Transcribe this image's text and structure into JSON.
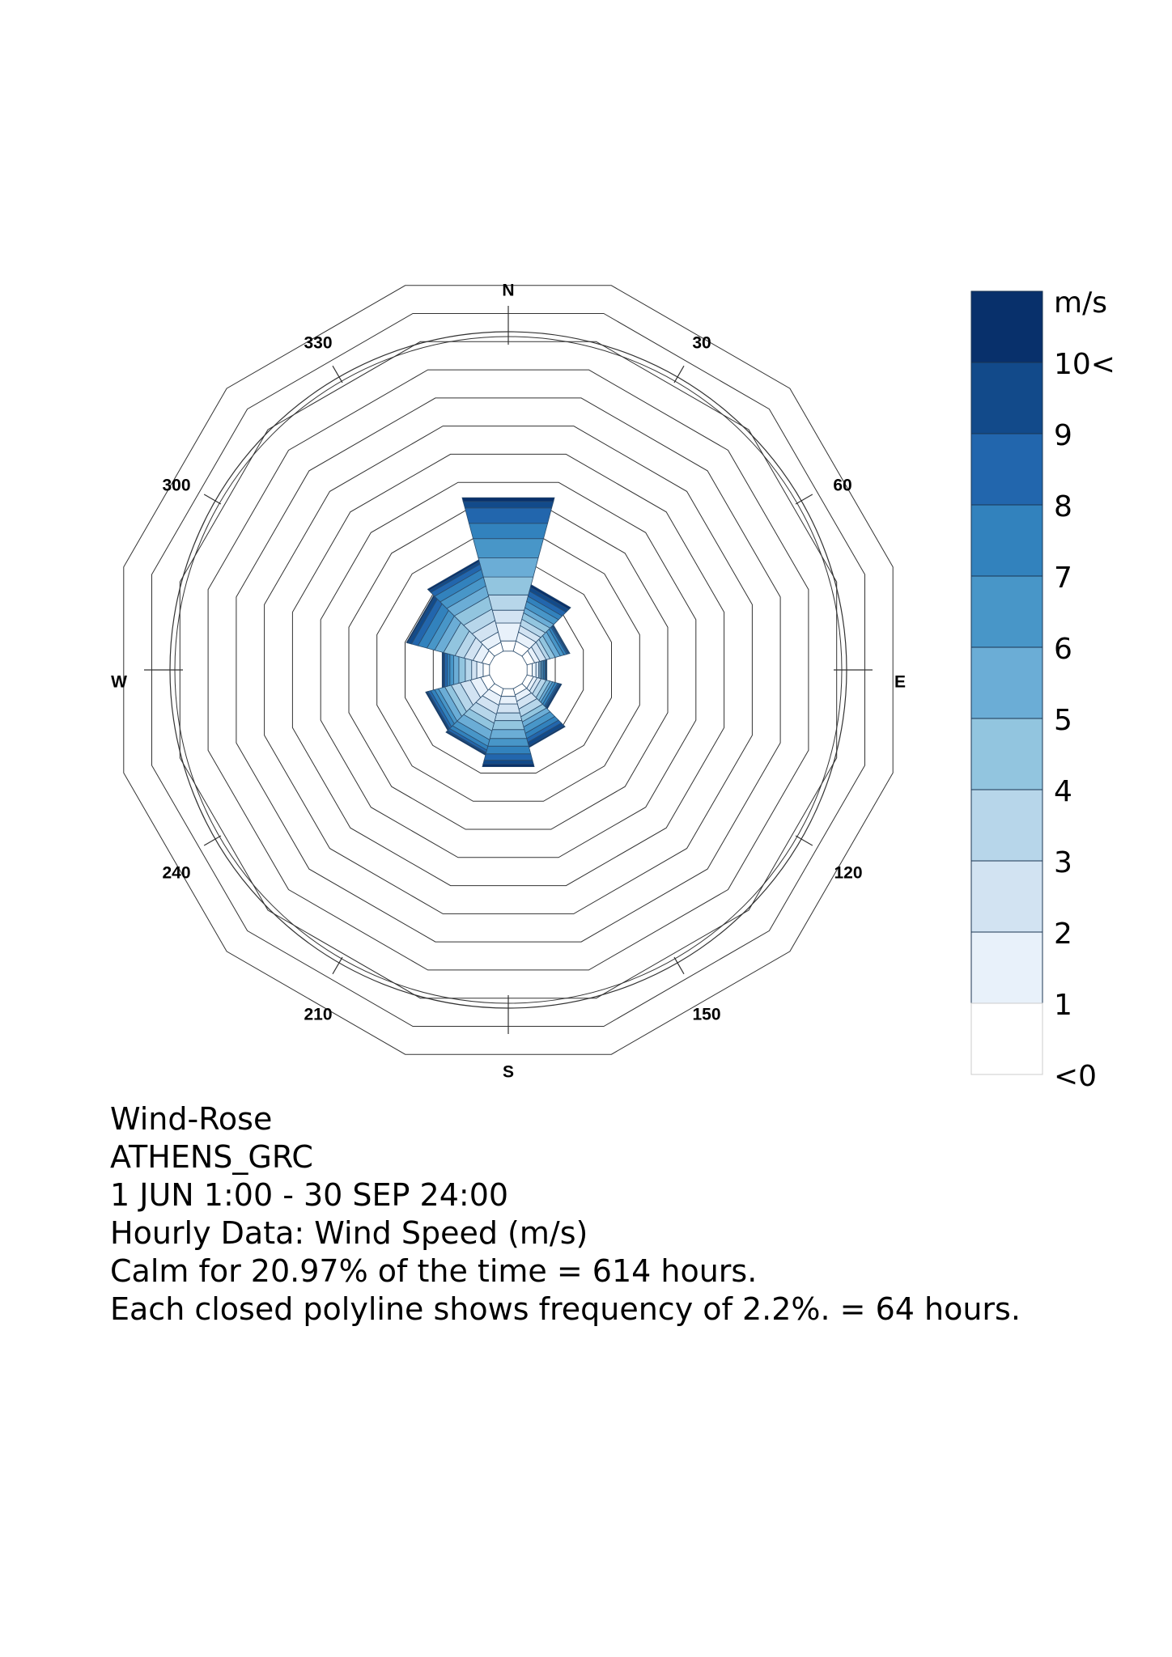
{
  "chart_data": {
    "type": "wind-rose",
    "compass": {
      "n": "N",
      "e": "E",
      "s": "S",
      "w": "W"
    },
    "angle_ticks": [
      "30",
      "60",
      "120",
      "150",
      "210",
      "240",
      "300",
      "330"
    ],
    "legend": {
      "unit": "m/s",
      "labels": [
        "10<",
        "9",
        "8",
        "7",
        "6",
        "5",
        "4",
        "3",
        "2",
        "1",
        "<0"
      ],
      "colors": [
        "#08306b",
        "#124a8a",
        "#2266ad",
        "#3282bd",
        "#4896c8",
        "#6badd6",
        "#92c5df",
        "#b7d6ea",
        "#d2e3f2",
        "#e8f1fa",
        "#ffffff"
      ]
    },
    "frequency_ring_step_percent": 2.2,
    "frequency_ring_count": 13,
    "direction_sectors_deg": [
      0,
      30,
      60,
      90,
      120,
      150,
      180,
      210,
      240,
      270,
      300,
      330
    ],
    "bands_low_to_high": [
      "<0-1",
      "1-2",
      "2-3",
      "3-4",
      "4-5",
      "5-6",
      "6-7",
      "7-8",
      "8-9",
      "9-10",
      "10<"
    ],
    "cumulative_frequency_percent": {
      "0": [
        0.8,
        2.2,
        3.2,
        4.4,
        5.8,
        7.3,
        8.8,
        10.0,
        11.2,
        11.7,
        12.0
      ],
      "30": [
        0.8,
        1.5,
        2.0,
        2.5,
        3.0,
        3.4,
        3.9,
        4.3,
        4.7,
        5.0,
        5.2
      ],
      "60": [
        0.6,
        1.0,
        1.5,
        1.8,
        2.2,
        2.6,
        2.9,
        3.1,
        3.2,
        3.3,
        3.35
      ],
      "90": [
        0.4,
        0.7,
        0.9,
        1.0,
        1.1,
        1.2,
        1.3,
        1.4,
        1.45,
        1.5,
        1.55
      ],
      "120": [
        0.5,
        0.8,
        1.1,
        1.5,
        1.8,
        2.0,
        2.2,
        2.4,
        2.5,
        2.6,
        2.7
      ],
      "150": [
        0.5,
        1.0,
        1.6,
        2.2,
        2.6,
        3.0,
        3.5,
        3.9,
        4.2,
        4.5,
        4.6
      ],
      "180": [
        0.6,
        1.2,
        1.9,
        2.5,
        3.2,
        3.9,
        4.5,
        5.1,
        5.6,
        5.9,
        6.1
      ],
      "210": [
        0.6,
        1.3,
        2.0,
        2.7,
        3.3,
        4.0,
        4.5,
        4.8,
        5.0,
        5.1,
        5.2
      ],
      "240": [
        0.7,
        1.5,
        2.3,
        3.0,
        3.5,
        4.0,
        4.3,
        4.6,
        4.8,
        4.9,
        5.0
      ],
      "270": [
        0.5,
        1.0,
        1.4,
        1.9,
        2.4,
        2.8,
        3.1,
        3.3,
        3.5,
        3.6,
        3.7
      ],
      "300": [
        0.6,
        1.3,
        2.0,
        2.7,
        3.6,
        4.3,
        4.9,
        5.6,
        6.1,
        6.4,
        6.5
      ],
      "330": [
        0.7,
        1.5,
        2.4,
        3.3,
        4.3,
        5.1,
        5.8,
        6.4,
        6.8,
        7.0,
        7.15
      ]
    }
  },
  "caption": {
    "line1": "Wind-Rose",
    "line2": "ATHENS_GRC",
    "line3": "1 JUN 1:00 - 30 SEP 24:00",
    "line4": "Hourly Data: Wind Speed (m/s)",
    "line5": "Calm for 20.97% of the time = 614 hours.",
    "line6": "Each closed polyline shows frequency of 2.2%. = 64 hours."
  }
}
